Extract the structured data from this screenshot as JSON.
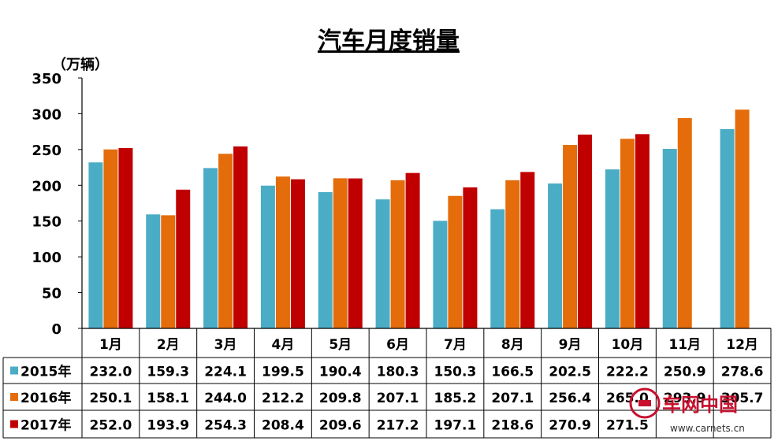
{
  "chart_data": {
    "type": "bar",
    "title": "汽车月度销量",
    "unit_label": "（万辆）",
    "ylim": [
      0,
      350
    ],
    "yticks": [
      0,
      50,
      100,
      150,
      200,
      250,
      300,
      350
    ],
    "categories": [
      "1月",
      "2月",
      "3月",
      "4月",
      "5月",
      "6月",
      "7月",
      "8月",
      "9月",
      "10月",
      "11月",
      "12月"
    ],
    "series": [
      {
        "name": "2015年",
        "color": "#4BACC6",
        "values": [
          232.0,
          159.3,
          224.1,
          199.5,
          190.4,
          180.3,
          150.3,
          166.5,
          202.5,
          222.2,
          250.9,
          278.6
        ],
        "labels": [
          "232.0",
          "159.3",
          "224.1",
          "199.5",
          "190.4",
          "180.3",
          "150.3",
          "166.5",
          "202.5",
          "222.2",
          "250.9",
          "278.6"
        ]
      },
      {
        "name": "2016年",
        "color": "#E46C0A",
        "values": [
          250.1,
          158.1,
          244.0,
          212.2,
          209.8,
          207.1,
          185.2,
          207.1,
          256.4,
          265.0,
          293.9,
          305.7
        ],
        "labels": [
          "250.1",
          "158.1",
          "244.0",
          "212.2",
          "209.8",
          "207.1",
          "185.2",
          "207.1",
          "256.4",
          "265.0",
          "293.9",
          "305.7"
        ]
      },
      {
        "name": "2017年",
        "color": "#C00000",
        "values": [
          252.0,
          193.9,
          254.3,
          208.4,
          209.6,
          217.2,
          197.1,
          218.6,
          270.9,
          271.5,
          null,
          null
        ],
        "labels": [
          "252.0",
          "193.9",
          "254.3",
          "208.4",
          "209.6",
          "217.2",
          "197.1",
          "218.6",
          "270.9",
          "271.5",
          "",
          ""
        ]
      }
    ],
    "data_table": true,
    "grid": false
  },
  "watermark": {
    "text": "车网中国",
    "url": "www.carnets.cn",
    "color": "#C8102E"
  }
}
